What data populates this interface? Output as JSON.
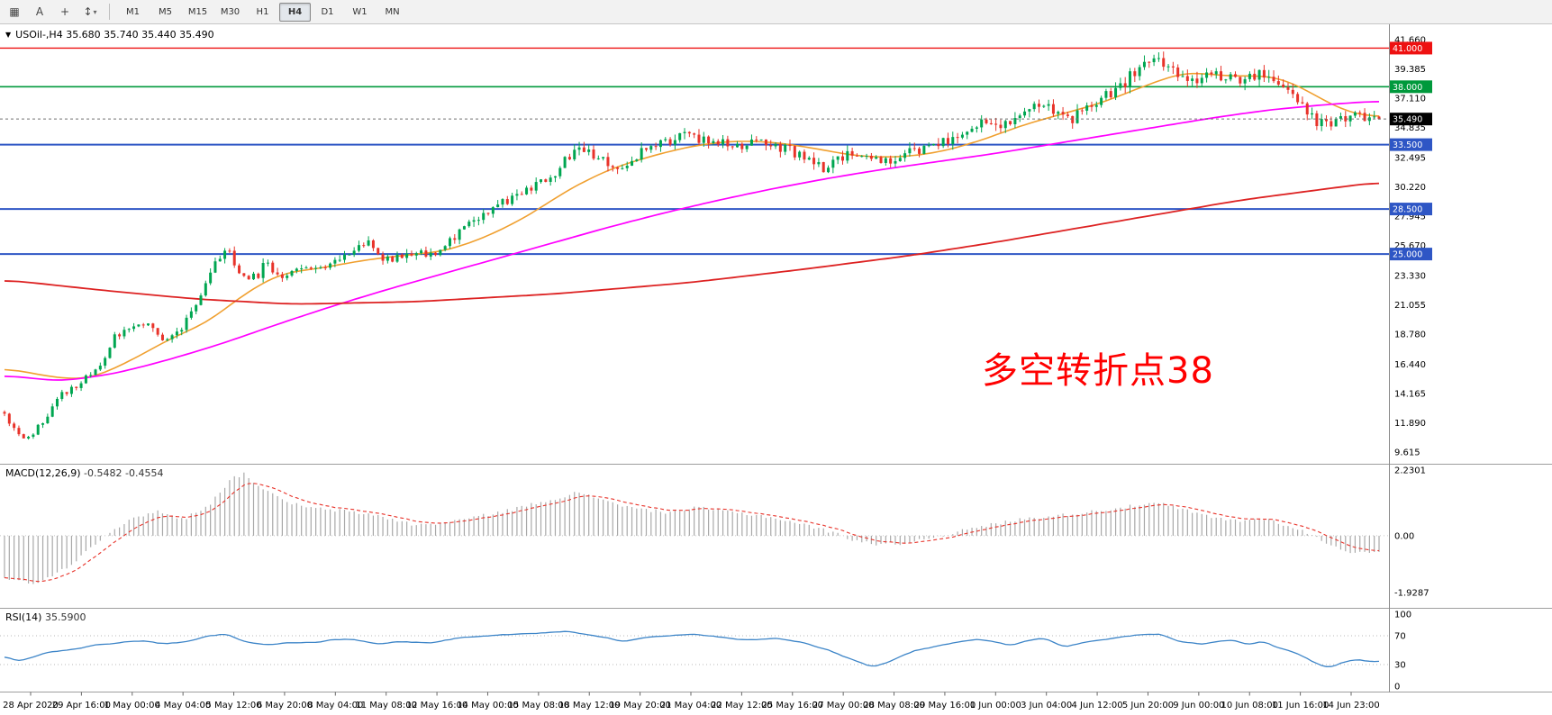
{
  "toolbar": {
    "tools": [
      {
        "id": "charts-grid",
        "glyph": "▦"
      },
      {
        "id": "text-label",
        "glyph": "A"
      },
      {
        "id": "crosshair",
        "glyph": "+"
      },
      {
        "id": "indicators",
        "glyph": "↕",
        "caret": "▾"
      }
    ],
    "timeframes": [
      "M1",
      "M5",
      "M15",
      "M30",
      "H1",
      "H4",
      "D1",
      "W1",
      "MN"
    ],
    "active_timeframe": "H4"
  },
  "chart_header": {
    "menu_icon": "▼",
    "title": "USOil-,H4 35.680 35.740 35.440 35.490"
  },
  "chart_data": {
    "type": "candlestick",
    "symbol": "USOil-",
    "timeframe": "H4",
    "ohlc": {
      "open": "35.680",
      "high": "35.740",
      "low": "35.440",
      "close": "35.490"
    },
    "price_axis_labels": [
      "41.660",
      "39.385",
      "37.110",
      "34.835",
      "32.495",
      "30.220",
      "27.945",
      "25.670",
      "23.330",
      "21.055",
      "18.780",
      "16.440",
      "14.165",
      "11.890",
      "9.615"
    ],
    "x_labels": [
      "28 Apr 2020",
      "29 Apr 16:00",
      "1 May 00:00",
      "4 May 04:00",
      "5 May 12:00",
      "6 May 20:00",
      "8 May 04:00",
      "11 May 08:00",
      "12 May 16:00",
      "14 May 00:00",
      "15 May 08:00",
      "18 May 12:00",
      "19 May 20:00",
      "21 May 04:00",
      "22 May 12:00",
      "25 May 16:00",
      "27 May 00:00",
      "28 May 08:00",
      "29 May 16:00",
      "1 Jun 00:00",
      "3 Jun 04:00",
      "4 Jun 12:00",
      "5 Jun 20:00",
      "9 Jun 00:00",
      "10 Jun 08:00",
      "11 Jun 16:00",
      "14 Jun 23:00"
    ],
    "hlines": [
      {
        "label": "41.000",
        "value": 41.0,
        "color": "#ee1111",
        "width": 1.4
      },
      {
        "label": "38.000",
        "value": 38.0,
        "color": "#00993c",
        "width": 1.6
      },
      {
        "label": "33.500",
        "value": 33.5,
        "color": "#2e56c5",
        "width": 2.0
      },
      {
        "label": "28.500",
        "value": 28.5,
        "color": "#2e56c5",
        "width": 2.0
      },
      {
        "label": "25.000",
        "value": 25.0,
        "color": "#2e56c5",
        "width": 2.0
      }
    ],
    "current_price": {
      "label": "35.490",
      "value": 35.49,
      "tag_color": "#000000"
    },
    "annotation": {
      "text": "多空转折点38",
      "color": "#ff0000"
    },
    "candles": {
      "count": 288,
      "up_color": "#00a651",
      "down_color": "#e8332a",
      "last": {
        "o": 35.68,
        "h": 35.74,
        "l": 35.44,
        "c": 35.49
      },
      "trend_anchors": [
        [
          0,
          12.6
        ],
        [
          0.006,
          11.4
        ],
        [
          0.015,
          10.4
        ],
        [
          0.03,
          12.2
        ],
        [
          0.041,
          14
        ],
        [
          0.055,
          15
        ],
        [
          0.07,
          16.3
        ],
        [
          0.08,
          18.5
        ],
        [
          0.09,
          19.2
        ],
        [
          0.105,
          19.9
        ],
        [
          0.115,
          18.1
        ],
        [
          0.128,
          19.2
        ],
        [
          0.14,
          21.3
        ],
        [
          0.152,
          24.2
        ],
        [
          0.161,
          25.4
        ],
        [
          0.172,
          23.5
        ],
        [
          0.183,
          23.1
        ],
        [
          0.19,
          24.5
        ],
        [
          0.197,
          23.2
        ],
        [
          0.21,
          23.7
        ],
        [
          0.226,
          24
        ],
        [
          0.24,
          24.3
        ],
        [
          0.255,
          25.6
        ],
        [
          0.263,
          25.9
        ],
        [
          0.276,
          24.6
        ],
        [
          0.29,
          24.9
        ],
        [
          0.3,
          25.2
        ],
        [
          0.315,
          25
        ],
        [
          0.33,
          26.5
        ],
        [
          0.337,
          27.2
        ],
        [
          0.352,
          28.5
        ],
        [
          0.365,
          29.2
        ],
        [
          0.374,
          29.6
        ],
        [
          0.386,
          30.2
        ],
        [
          0.398,
          31
        ],
        [
          0.411,
          32.6
        ],
        [
          0.42,
          33
        ],
        [
          0.435,
          32.2
        ],
        [
          0.448,
          31.3
        ],
        [
          0.46,
          32.7
        ],
        [
          0.472,
          33.4
        ],
        [
          0.485,
          33.8
        ],
        [
          0.5,
          34.2
        ],
        [
          0.512,
          33.6
        ],
        [
          0.522,
          33.9
        ],
        [
          0.536,
          33.4
        ],
        [
          0.549,
          33.9
        ],
        [
          0.559,
          33.5
        ],
        [
          0.572,
          33
        ],
        [
          0.585,
          32.3
        ],
        [
          0.596,
          31.7
        ],
        [
          0.61,
          32.6
        ],
        [
          0.622,
          33.1
        ],
        [
          0.633,
          32.4
        ],
        [
          0.646,
          32.2
        ],
        [
          0.66,
          32.9
        ],
        [
          0.67,
          33.3
        ],
        [
          0.686,
          33.7
        ],
        [
          0.7,
          34.7
        ],
        [
          0.707,
          35.2
        ],
        [
          0.718,
          35.4
        ],
        [
          0.73,
          35
        ],
        [
          0.744,
          36.3
        ],
        [
          0.754,
          36.9
        ],
        [
          0.764,
          36.2
        ],
        [
          0.774,
          35.3
        ],
        [
          0.781,
          36
        ],
        [
          0.792,
          36.9
        ],
        [
          0.803,
          37.4
        ],
        [
          0.812,
          38
        ],
        [
          0.818,
          38.7
        ],
        [
          0.828,
          39.5
        ],
        [
          0.838,
          40.2
        ],
        [
          0.846,
          39.9
        ],
        [
          0.855,
          38.9
        ],
        [
          0.865,
          38.3
        ],
        [
          0.878,
          38.8
        ],
        [
          0.89,
          39
        ],
        [
          0.903,
          38.5
        ],
        [
          0.914,
          39.2
        ],
        [
          0.924,
          38.7
        ],
        [
          0.934,
          37.7
        ],
        [
          0.944,
          36.8
        ],
        [
          0.953,
          35.3
        ],
        [
          0.962,
          34.9
        ],
        [
          0.972,
          35.5
        ],
        [
          0.981,
          35.9
        ],
        [
          0.99,
          35.4
        ],
        [
          1,
          35.49
        ]
      ]
    },
    "overlays": [
      {
        "name": "ma-fast",
        "color": "#f0a030",
        "width": 1.6,
        "anchors": [
          [
            0,
            16.2
          ],
          [
            0.03,
            15.5
          ],
          [
            0.06,
            15.2
          ],
          [
            0.09,
            16.6
          ],
          [
            0.12,
            18.4
          ],
          [
            0.15,
            19.8
          ],
          [
            0.17,
            21.6
          ],
          [
            0.2,
            23.5
          ],
          [
            0.23,
            23.9
          ],
          [
            0.26,
            24.5
          ],
          [
            0.29,
            24.9
          ],
          [
            0.32,
            25.2
          ],
          [
            0.35,
            26.3
          ],
          [
            0.38,
            27.9
          ],
          [
            0.41,
            30
          ],
          [
            0.44,
            31.6
          ],
          [
            0.47,
            32.6
          ],
          [
            0.5,
            33.4
          ],
          [
            0.53,
            33.8
          ],
          [
            0.56,
            33.7
          ],
          [
            0.59,
            33.2
          ],
          [
            0.62,
            32.6
          ],
          [
            0.65,
            32.5
          ],
          [
            0.68,
            32.9
          ],
          [
            0.71,
            33.8
          ],
          [
            0.74,
            35
          ],
          [
            0.77,
            35.9
          ],
          [
            0.8,
            36.8
          ],
          [
            0.83,
            38.1
          ],
          [
            0.86,
            39.2
          ],
          [
            0.88,
            38.9
          ],
          [
            0.9,
            38.8
          ],
          [
            0.92,
            38.9
          ],
          [
            0.94,
            38.2
          ],
          [
            0.96,
            36.9
          ],
          [
            0.98,
            35.9
          ],
          [
            1,
            35.6
          ]
        ]
      },
      {
        "name": "ma-mid",
        "color": "#ff00ff",
        "width": 1.7,
        "anchors": [
          [
            0,
            15.6
          ],
          [
            0.04,
            15.1
          ],
          [
            0.08,
            15.7
          ],
          [
            0.12,
            16.8
          ],
          [
            0.16,
            18.1
          ],
          [
            0.2,
            19.6
          ],
          [
            0.24,
            21
          ],
          [
            0.28,
            22.3
          ],
          [
            0.32,
            23.5
          ],
          [
            0.36,
            24.7
          ],
          [
            0.4,
            25.9
          ],
          [
            0.44,
            27.1
          ],
          [
            0.48,
            28.2
          ],
          [
            0.52,
            29.2
          ],
          [
            0.56,
            30.1
          ],
          [
            0.6,
            30.9
          ],
          [
            0.64,
            31.6
          ],
          [
            0.68,
            32.2
          ],
          [
            0.72,
            32.8
          ],
          [
            0.76,
            33.5
          ],
          [
            0.8,
            34.2
          ],
          [
            0.84,
            34.9
          ],
          [
            0.88,
            35.6
          ],
          [
            0.92,
            36.2
          ],
          [
            0.96,
            36.6
          ],
          [
            1,
            36.9
          ]
        ]
      },
      {
        "name": "ma-slow",
        "color": "#dd2222",
        "width": 1.8,
        "anchors": [
          [
            0,
            23
          ],
          [
            0.07,
            22.2
          ],
          [
            0.14,
            21.5
          ],
          [
            0.21,
            21.1
          ],
          [
            0.3,
            21.3
          ],
          [
            0.4,
            21.9
          ],
          [
            0.5,
            22.8
          ],
          [
            0.58,
            23.8
          ],
          [
            0.66,
            24.9
          ],
          [
            0.72,
            25.9
          ],
          [
            0.78,
            27
          ],
          [
            0.84,
            28.1
          ],
          [
            0.9,
            29.2
          ],
          [
            0.95,
            29.9
          ],
          [
            1,
            30.6
          ]
        ]
      }
    ],
    "macd": {
      "name": "MACD(12,26,9)",
      "main_value": "-0.5482",
      "signal_value": "-0.4554",
      "hist_color": "#a8a8a8",
      "signal_color": "#e8332a",
      "axis": [
        {
          "label": "2.2301",
          "value": 2.2301
        },
        {
          "label": "0.00",
          "value": 0
        },
        {
          "label": "-1.9287",
          "value": -1.9287
        }
      ],
      "anchors": [
        [
          0,
          -1.4
        ],
        [
          0.02,
          -1.65
        ],
        [
          0.045,
          -1.1
        ],
        [
          0.06,
          -0.5
        ],
        [
          0.075,
          0.1
        ],
        [
          0.095,
          0.6
        ],
        [
          0.11,
          0.85
        ],
        [
          0.13,
          0.55
        ],
        [
          0.15,
          1.1
        ],
        [
          0.165,
          1.95
        ],
        [
          0.175,
          2.1
        ],
        [
          0.185,
          1.7
        ],
        [
          0.2,
          1.25
        ],
        [
          0.22,
          0.95
        ],
        [
          0.245,
          0.85
        ],
        [
          0.27,
          0.7
        ],
        [
          0.3,
          0.35
        ],
        [
          0.32,
          0.45
        ],
        [
          0.345,
          0.65
        ],
        [
          0.37,
          0.9
        ],
        [
          0.395,
          1.2
        ],
        [
          0.415,
          1.45
        ],
        [
          0.435,
          1.25
        ],
        [
          0.455,
          0.95
        ],
        [
          0.48,
          0.8
        ],
        [
          0.505,
          0.95
        ],
        [
          0.53,
          0.8
        ],
        [
          0.555,
          0.65
        ],
        [
          0.58,
          0.4
        ],
        [
          0.6,
          0.15
        ],
        [
          0.615,
          -0.1
        ],
        [
          0.635,
          -0.3
        ],
        [
          0.655,
          -0.25
        ],
        [
          0.675,
          -0.05
        ],
        [
          0.695,
          0.15
        ],
        [
          0.72,
          0.4
        ],
        [
          0.745,
          0.6
        ],
        [
          0.77,
          0.7
        ],
        [
          0.795,
          0.85
        ],
        [
          0.82,
          1
        ],
        [
          0.84,
          1.1
        ],
        [
          0.86,
          0.85
        ],
        [
          0.88,
          0.6
        ],
        [
          0.9,
          0.5
        ],
        [
          0.915,
          0.6
        ],
        [
          0.93,
          0.4
        ],
        [
          0.945,
          0.15
        ],
        [
          0.958,
          -0.15
        ],
        [
          0.972,
          -0.45
        ],
        [
          0.985,
          -0.6
        ],
        [
          1,
          -0.5482
        ]
      ]
    },
    "rsi": {
      "name": "RSI(14)",
      "value": "35.5900",
      "color": "#3d85c8",
      "axis": [
        {
          "label": "100",
          "value": 100
        },
        {
          "label": "70",
          "value": 70
        },
        {
          "label": "30",
          "value": 30
        },
        {
          "label": "0",
          "value": 0
        }
      ],
      "levels": [
        70,
        30
      ],
      "anchors": [
        [
          0,
          42
        ],
        [
          0.01,
          35
        ],
        [
          0.03,
          46
        ],
        [
          0.06,
          55
        ],
        [
          0.08,
          60
        ],
        [
          0.1,
          64
        ],
        [
          0.115,
          58
        ],
        [
          0.13,
          62
        ],
        [
          0.15,
          70
        ],
        [
          0.16,
          73
        ],
        [
          0.175,
          62
        ],
        [
          0.19,
          58
        ],
        [
          0.21,
          60
        ],
        [
          0.23,
          62
        ],
        [
          0.25,
          66
        ],
        [
          0.27,
          58
        ],
        [
          0.29,
          62
        ],
        [
          0.31,
          60
        ],
        [
          0.33,
          67
        ],
        [
          0.35,
          70
        ],
        [
          0.37,
          72
        ],
        [
          0.39,
          74
        ],
        [
          0.41,
          77
        ],
        [
          0.43,
          70
        ],
        [
          0.45,
          62
        ],
        [
          0.47,
          68
        ],
        [
          0.5,
          72
        ],
        [
          0.52,
          68
        ],
        [
          0.54,
          64
        ],
        [
          0.56,
          67
        ],
        [
          0.58,
          61
        ],
        [
          0.6,
          50
        ],
        [
          0.615,
          38
        ],
        [
          0.63,
          27
        ],
        [
          0.645,
          35
        ],
        [
          0.66,
          48
        ],
        [
          0.675,
          55
        ],
        [
          0.69,
          60
        ],
        [
          0.707,
          65
        ],
        [
          0.72,
          62
        ],
        [
          0.732,
          57
        ],
        [
          0.744,
          64
        ],
        [
          0.756,
          67
        ],
        [
          0.77,
          55
        ],
        [
          0.785,
          60
        ],
        [
          0.8,
          65
        ],
        [
          0.82,
          70
        ],
        [
          0.84,
          73
        ],
        [
          0.855,
          62
        ],
        [
          0.87,
          58
        ],
        [
          0.882,
          62
        ],
        [
          0.895,
          64
        ],
        [
          0.905,
          57
        ],
        [
          0.915,
          63
        ],
        [
          0.925,
          55
        ],
        [
          0.935,
          48
        ],
        [
          0.945,
          42
        ],
        [
          0.955,
          30
        ],
        [
          0.965,
          26
        ],
        [
          0.975,
          33
        ],
        [
          0.985,
          38
        ],
        [
          0.993,
          34
        ],
        [
          1,
          35.6
        ]
      ]
    }
  }
}
